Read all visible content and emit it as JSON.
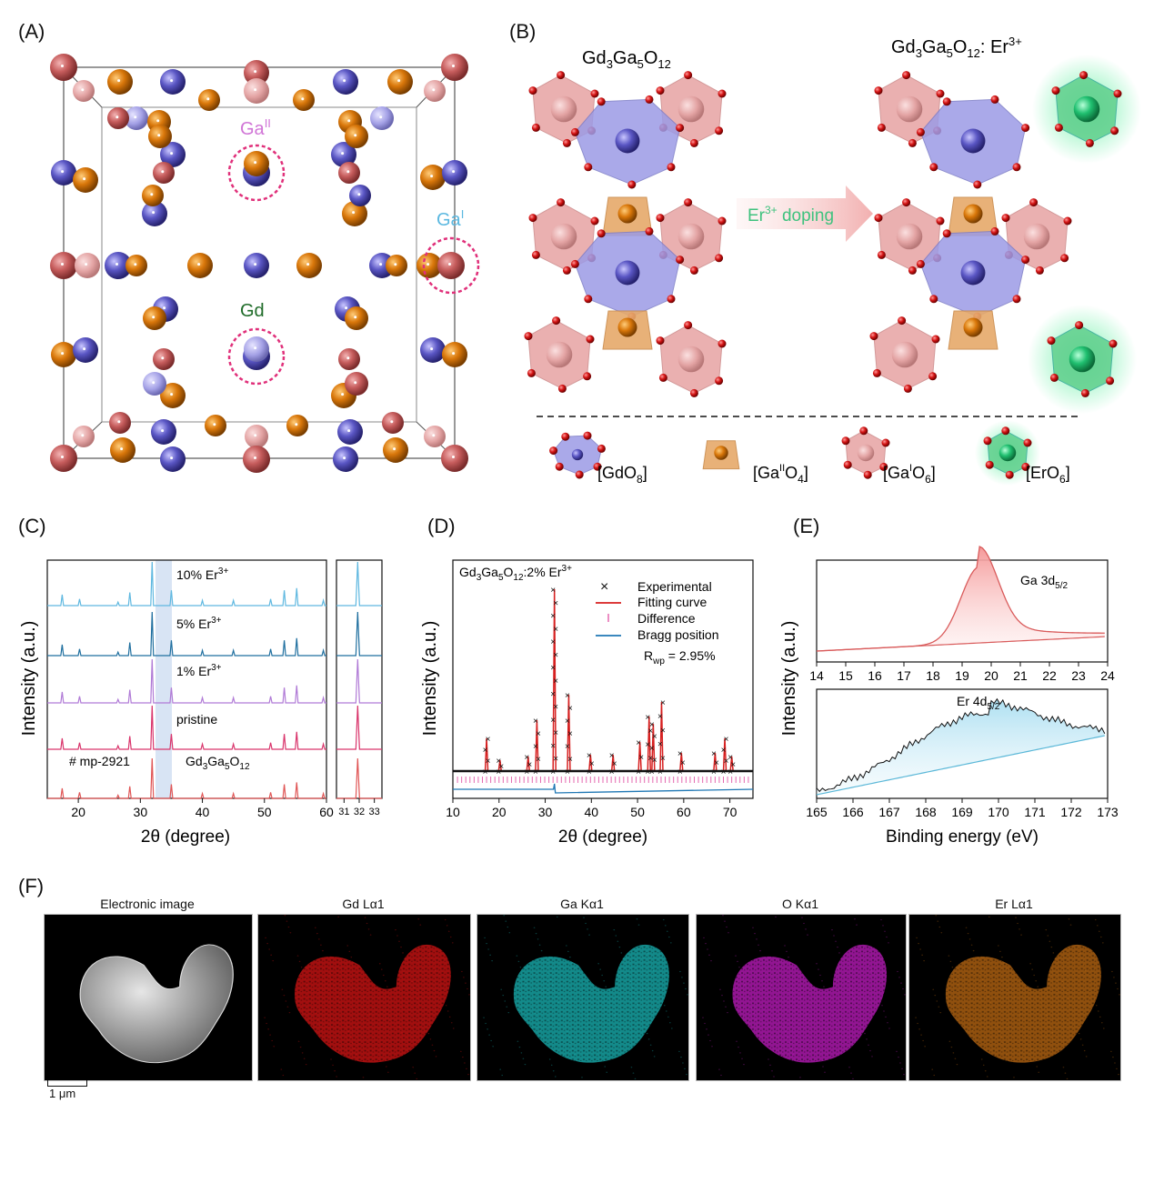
{
  "panels": {
    "A": {
      "label": "(A)",
      "site_labels": {
        "ga2": "Ga",
        "ga2_sup": "II",
        "ga1": "Ga",
        "ga1_sup": "I",
        "gd": "Gd"
      }
    },
    "B": {
      "label": "(B)",
      "left_formula": [
        "Gd",
        "3",
        "Ga",
        "5",
        "O",
        "12"
      ],
      "right_formula": [
        "Gd",
        "3",
        "Ga",
        "5",
        "O",
        "12",
        ": Er",
        "3+"
      ],
      "arrow_label": [
        "Er",
        "3+",
        " doping"
      ],
      "legend": [
        {
          "name": "GdO",
          "sub": "8"
        },
        {
          "name": "Ga",
          "sup": "II",
          "rest": "O",
          "sub": "4"
        },
        {
          "name": "Ga",
          "sup": "I",
          "rest": "O",
          "sub": "6"
        },
        {
          "name": "ErO",
          "sub": "6"
        }
      ]
    },
    "C": {
      "label": "(C)",
      "ylabel": "Intensity (a.u.)",
      "xlabel": "2θ (degree)",
      "main_ticks": [
        "20",
        "30",
        "40",
        "50",
        "60"
      ],
      "inset_ticks": [
        "31",
        "32",
        "33"
      ],
      "traces": [
        {
          "text": "10% Er",
          "sup": "3+",
          "color": "#5fb8e0"
        },
        {
          "text": "5% Er",
          "sup": "3+",
          "color": "#1f6f9f"
        },
        {
          "text": "1% Er",
          "sup": "3+",
          "color": "#b07ad6"
        },
        {
          "text": "pristine",
          "sup": "",
          "color": "#d9346b"
        }
      ],
      "reference": {
        "id": "# mp-2921",
        "formula": [
          "Gd",
          "3",
          "Ga",
          "5",
          "O",
          "12"
        ],
        "color": "#e05555"
      }
    },
    "D": {
      "label": "(D)",
      "ylabel": "Intensity (a.u.)",
      "xlabel": "2θ (degree)",
      "ticks": [
        "10",
        "20",
        "30",
        "40",
        "50",
        "60",
        "70"
      ],
      "sample": [
        "Gd",
        "3",
        "Ga",
        "5",
        "O",
        "12",
        ":2% Er",
        "3+"
      ],
      "legend": [
        "Experimental",
        "Fitting curve",
        "Difference",
        "Bragg position"
      ],
      "rwp": "R",
      "rwp_sub": "wp",
      "rwp_value": " = 2.95%"
    },
    "E": {
      "label": "(E)",
      "ylabel": "Intensity (a.u.)",
      "xlabel": "Binding energy (eV)",
      "top": {
        "name": "Ga 3d",
        "sub": "5/2",
        "ticks": [
          "14",
          "15",
          "16",
          "17",
          "18",
          "19",
          "20",
          "21",
          "22",
          "23",
          "24"
        ]
      },
      "bottom": {
        "name": "Er 4d",
        "sub": "5/2",
        "ticks": [
          "165",
          "166",
          "167",
          "168",
          "169",
          "170",
          "171",
          "172",
          "173"
        ]
      }
    },
    "F": {
      "label": "(F)",
      "maps": [
        "Electronic image",
        "Gd Lα1",
        "Ga Kα1",
        "O Kα1",
        "Er Lα1"
      ],
      "scale_bar": "1 μm"
    }
  },
  "chart_data": [
    {
      "type": "line",
      "panel": "C",
      "xlabel": "2θ (degree)",
      "ylabel": "Intensity (a.u.)",
      "xlim": [
        15,
        60
      ],
      "peak_positions": [
        17.4,
        20.2,
        26.4,
        28.3,
        31.9,
        35.0,
        40.0,
        45.0,
        51.0,
        53.2,
        55.2,
        59.5
      ],
      "series": [
        {
          "name": "10% Er3+"
        },
        {
          "name": "5% Er3+"
        },
        {
          "name": "1% Er3+"
        },
        {
          "name": "pristine"
        },
        {
          "name": "# mp-2921 Gd3Ga5O12"
        }
      ],
      "inset_xlim": [
        30.5,
        33.5
      ],
      "highlight_range": [
        31,
        33
      ]
    },
    {
      "type": "scatter",
      "panel": "D",
      "xlabel": "2θ (degree)",
      "ylabel": "Intensity (a.u.)",
      "xlim": [
        10,
        75
      ],
      "peaks": [
        {
          "x": 17.3,
          "y": 0.18
        },
        {
          "x": 20.2,
          "y": 0.06
        },
        {
          "x": 26.3,
          "y": 0.08
        },
        {
          "x": 28.2,
          "y": 0.28
        },
        {
          "x": 32.0,
          "y": 1.0
        },
        {
          "x": 35.1,
          "y": 0.42
        },
        {
          "x": 39.8,
          "y": 0.09
        },
        {
          "x": 44.7,
          "y": 0.09
        },
        {
          "x": 50.5,
          "y": 0.16
        },
        {
          "x": 52.5,
          "y": 0.3
        },
        {
          "x": 53.4,
          "y": 0.26
        },
        {
          "x": 55.2,
          "y": 0.38
        },
        {
          "x": 59.5,
          "y": 0.1
        },
        {
          "x": 66.8,
          "y": 0.1
        },
        {
          "x": 68.9,
          "y": 0.18
        },
        {
          "x": 70.4,
          "y": 0.08
        }
      ],
      "legend": [
        "Experimental",
        "Fitting curve",
        "Difference",
        "Bragg position"
      ]
    },
    {
      "type": "area",
      "panel": "E-top",
      "xlabel": "",
      "xlim": [
        14,
        24
      ],
      "peak_center": 19.6,
      "series": [
        {
          "name": "Ga 3d5/2"
        }
      ]
    },
    {
      "type": "area",
      "panel": "E-bottom",
      "xlabel": "Binding energy (eV)",
      "xlim": [
        165,
        173
      ],
      "peak_center": 169.8,
      "series": [
        {
          "name": "Er 4d5/2"
        }
      ]
    }
  ]
}
